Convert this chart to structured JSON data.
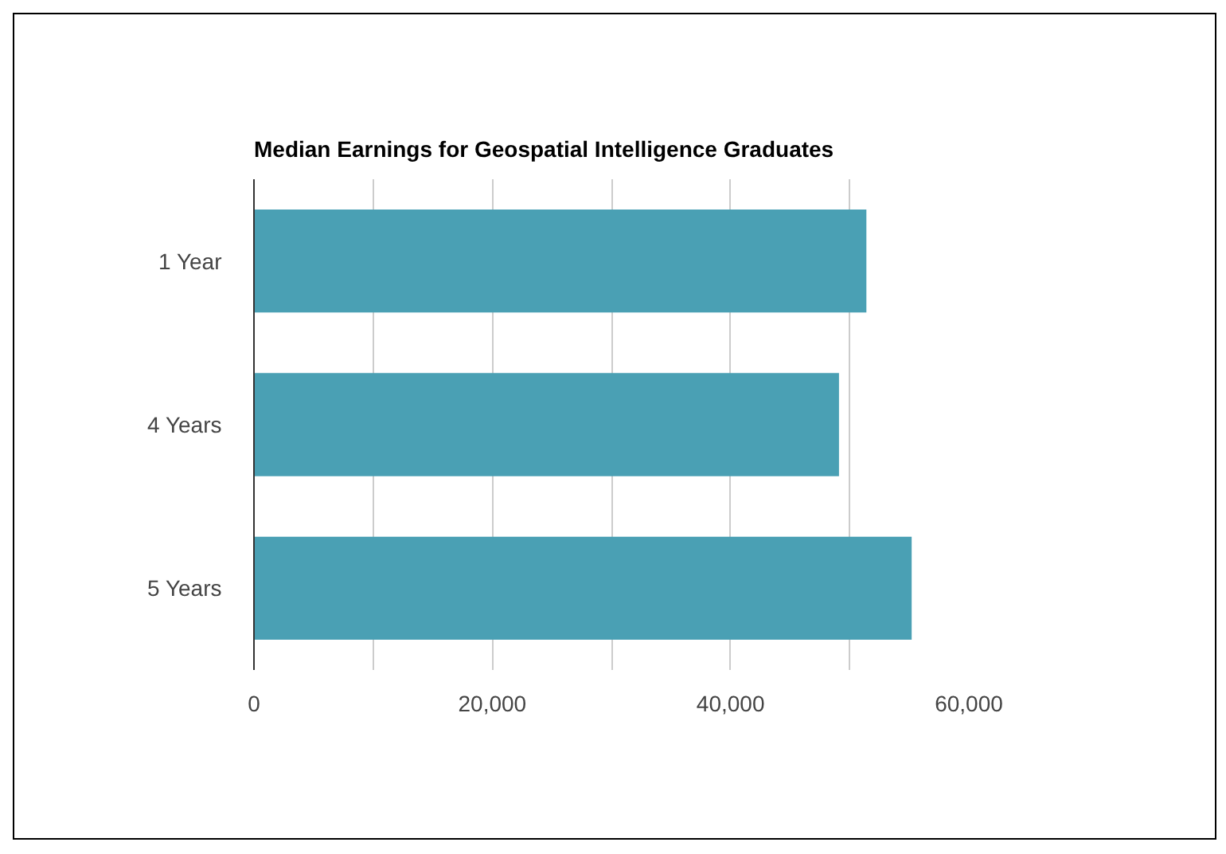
{
  "chart_data": {
    "type": "bar",
    "orientation": "horizontal",
    "title": "Median Earnings for Geospatial Intelligence Graduates",
    "categories": [
      "1 Year",
      "4 Years",
      "5 Years"
    ],
    "values": [
      51400,
      49100,
      55200
    ],
    "color": "#4aa0b4",
    "xlim": [
      0,
      60000
    ],
    "xticks": [
      0,
      {
        "value": 10000,
        "label": null
      },
      {
        "value": 20000,
        "label": "20,000"
      },
      {
        "value": 30000,
        "label": null
      },
      {
        "value": 40000,
        "label": "40,000"
      },
      {
        "value": 50000,
        "label": null
      },
      {
        "value": 60000,
        "label": "60,000"
      }
    ],
    "grid": "x"
  }
}
